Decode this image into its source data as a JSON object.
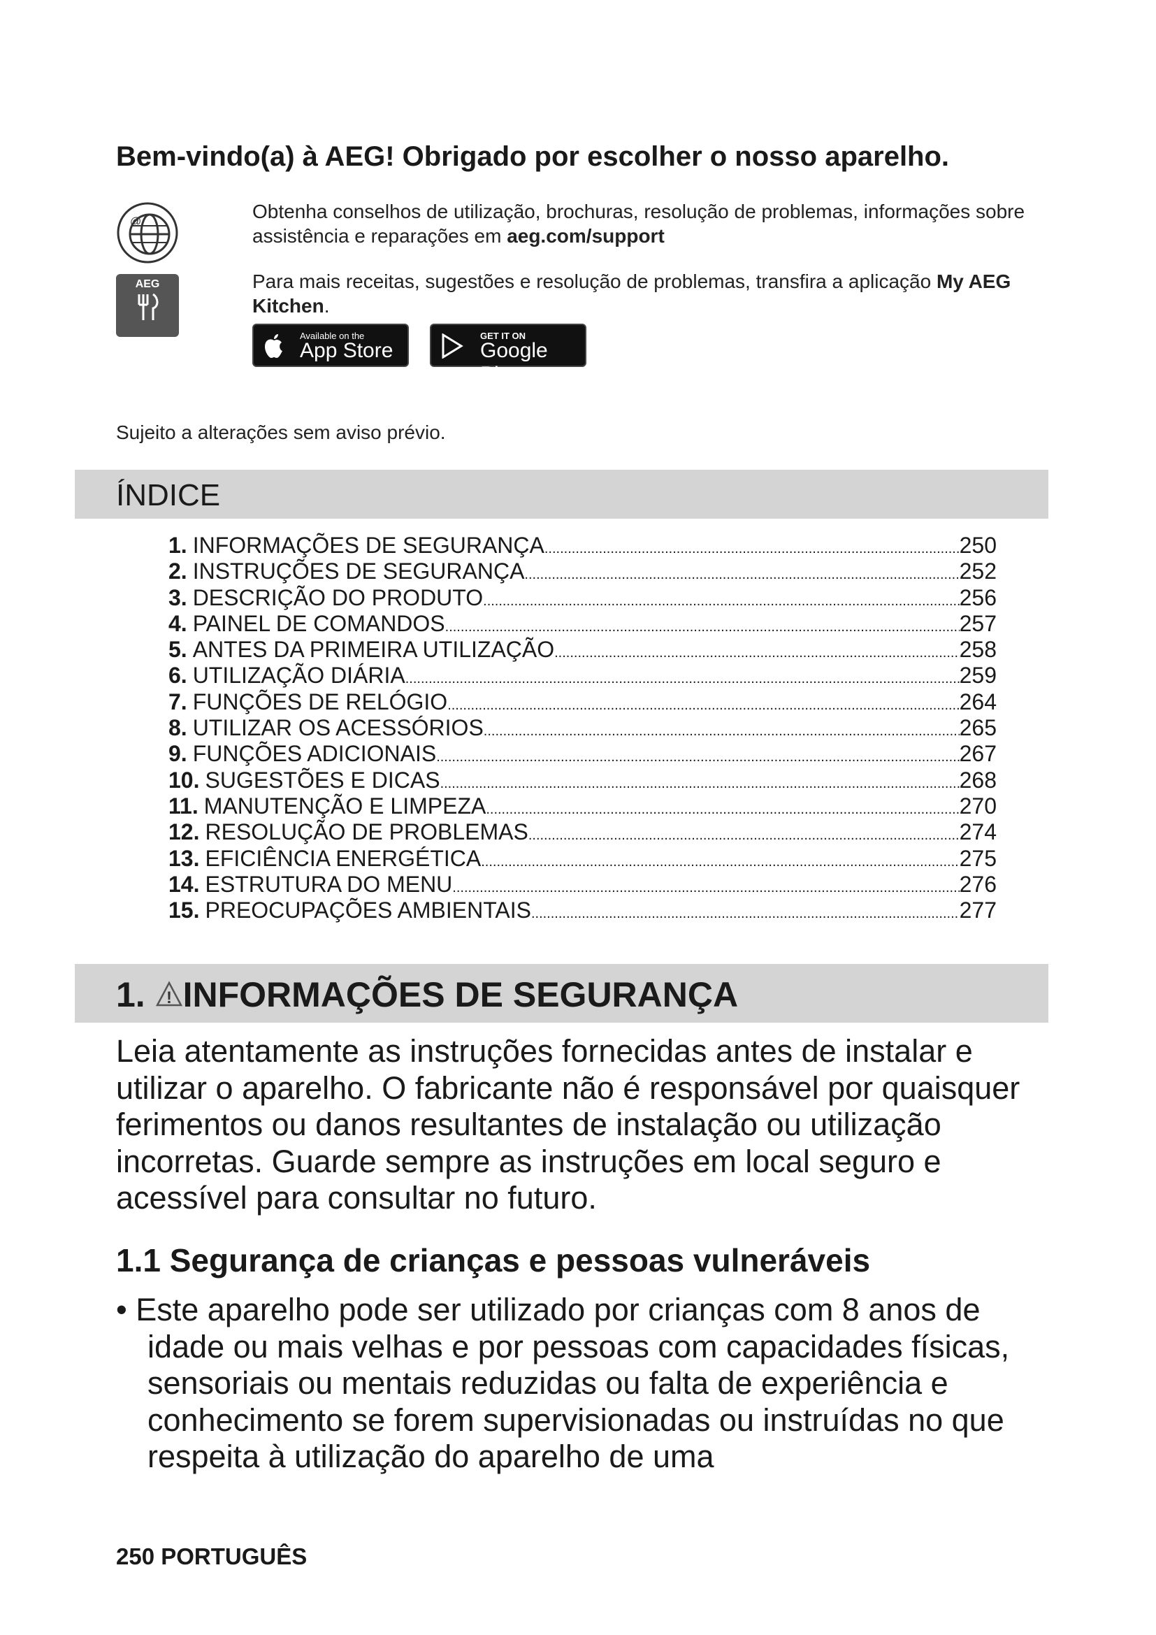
{
  "welcome_title": "Bem-vindo(a) à AEG! Obrigado por escolher o nosso aparelho.",
  "support": {
    "icon": "globe-at-icon",
    "text": "Obtenha conselhos de utilização, brochuras, resolução de problemas, informações sobre assistência e reparações em ",
    "link": "aeg.com/support"
  },
  "app": {
    "icon_label": "AEG",
    "text": "Para mais receitas, sugestões e resolução de problemas, transfira a aplicação ",
    "app_name": "My AEG Kitchen",
    "period": ".",
    "app_store_small": "Available on the",
    "app_store_big": "App Store",
    "google_small": "GET IT ON",
    "google_big": "Google Play"
  },
  "notice": "Sujeito a alterações sem aviso prévio.",
  "index": {
    "title": "ÍNDICE",
    "items": [
      {
        "num": "1.",
        "label": "INFORMAÇÕES DE SEGURANÇA",
        "page": "250"
      },
      {
        "num": "2.",
        "label": "INSTRUÇÕES DE SEGURANÇA",
        "page": "252"
      },
      {
        "num": "3.",
        "label": "DESCRIÇÃO DO PRODUTO",
        "page": "256"
      },
      {
        "num": "4.",
        "label": "PAINEL DE COMANDOS",
        "page": "257"
      },
      {
        "num": "5.",
        "label": "ANTES DA PRIMEIRA UTILIZAÇÃO",
        "page": "258"
      },
      {
        "num": "6.",
        "label": "UTILIZAÇÃO DIÁRIA",
        "page": "259"
      },
      {
        "num": "7.",
        "label": "FUNÇÕES DE RELÓGIO",
        "page": "264"
      },
      {
        "num": "8.",
        "label": "UTILIZAR OS ACESSÓRIOS",
        "page": "265"
      },
      {
        "num": "9.",
        "label": "FUNÇÕES ADICIONAIS",
        "page": "267"
      },
      {
        "num": "10.",
        "label": "SUGESTÕES E DICAS",
        "page": "268"
      },
      {
        "num": "11.",
        "label": "MANUTENÇÃO E LIMPEZA",
        "page": "270"
      },
      {
        "num": "12.",
        "label": "RESOLUÇÃO DE PROBLEMAS",
        "page": "274"
      },
      {
        "num": "13.",
        "label": "EFICIÊNCIA ENERGÉTICA",
        "page": "275"
      },
      {
        "num": "14.",
        "label": "ESTRUTURA DO MENU",
        "page": "276"
      },
      {
        "num": "15.",
        "label": "PREOCUPAÇÕES AMBIENTAIS",
        "page": "277"
      }
    ]
  },
  "section1": {
    "num": "1.",
    "icon": "warning-triangle-icon",
    "title": "INFORMAÇÕES DE SEGURANÇA",
    "intro": "Leia atentamente as instruções fornecidas antes de instalar e utilizar o aparelho. O fabricante não é responsável por quaisquer ferimentos ou danos resultantes de instalação ou utilização incorretas. Guarde sempre as instruções em local seguro e acessível para consultar no futuro.",
    "subtitle": "1.1 Segurança de crianças e pessoas vulneráveis",
    "bullet": "• Este aparelho pode ser utilizado por crianças com 8 anos de idade ou mais velhas e por pessoas com capacidades físicas, sensoriais ou mentais reduzidas ou falta de experiência e conhecimento se forem supervisionadas ou instruídas no que respeita à utilização do aparelho de uma"
  },
  "footer": "250 PORTUGUÊS"
}
